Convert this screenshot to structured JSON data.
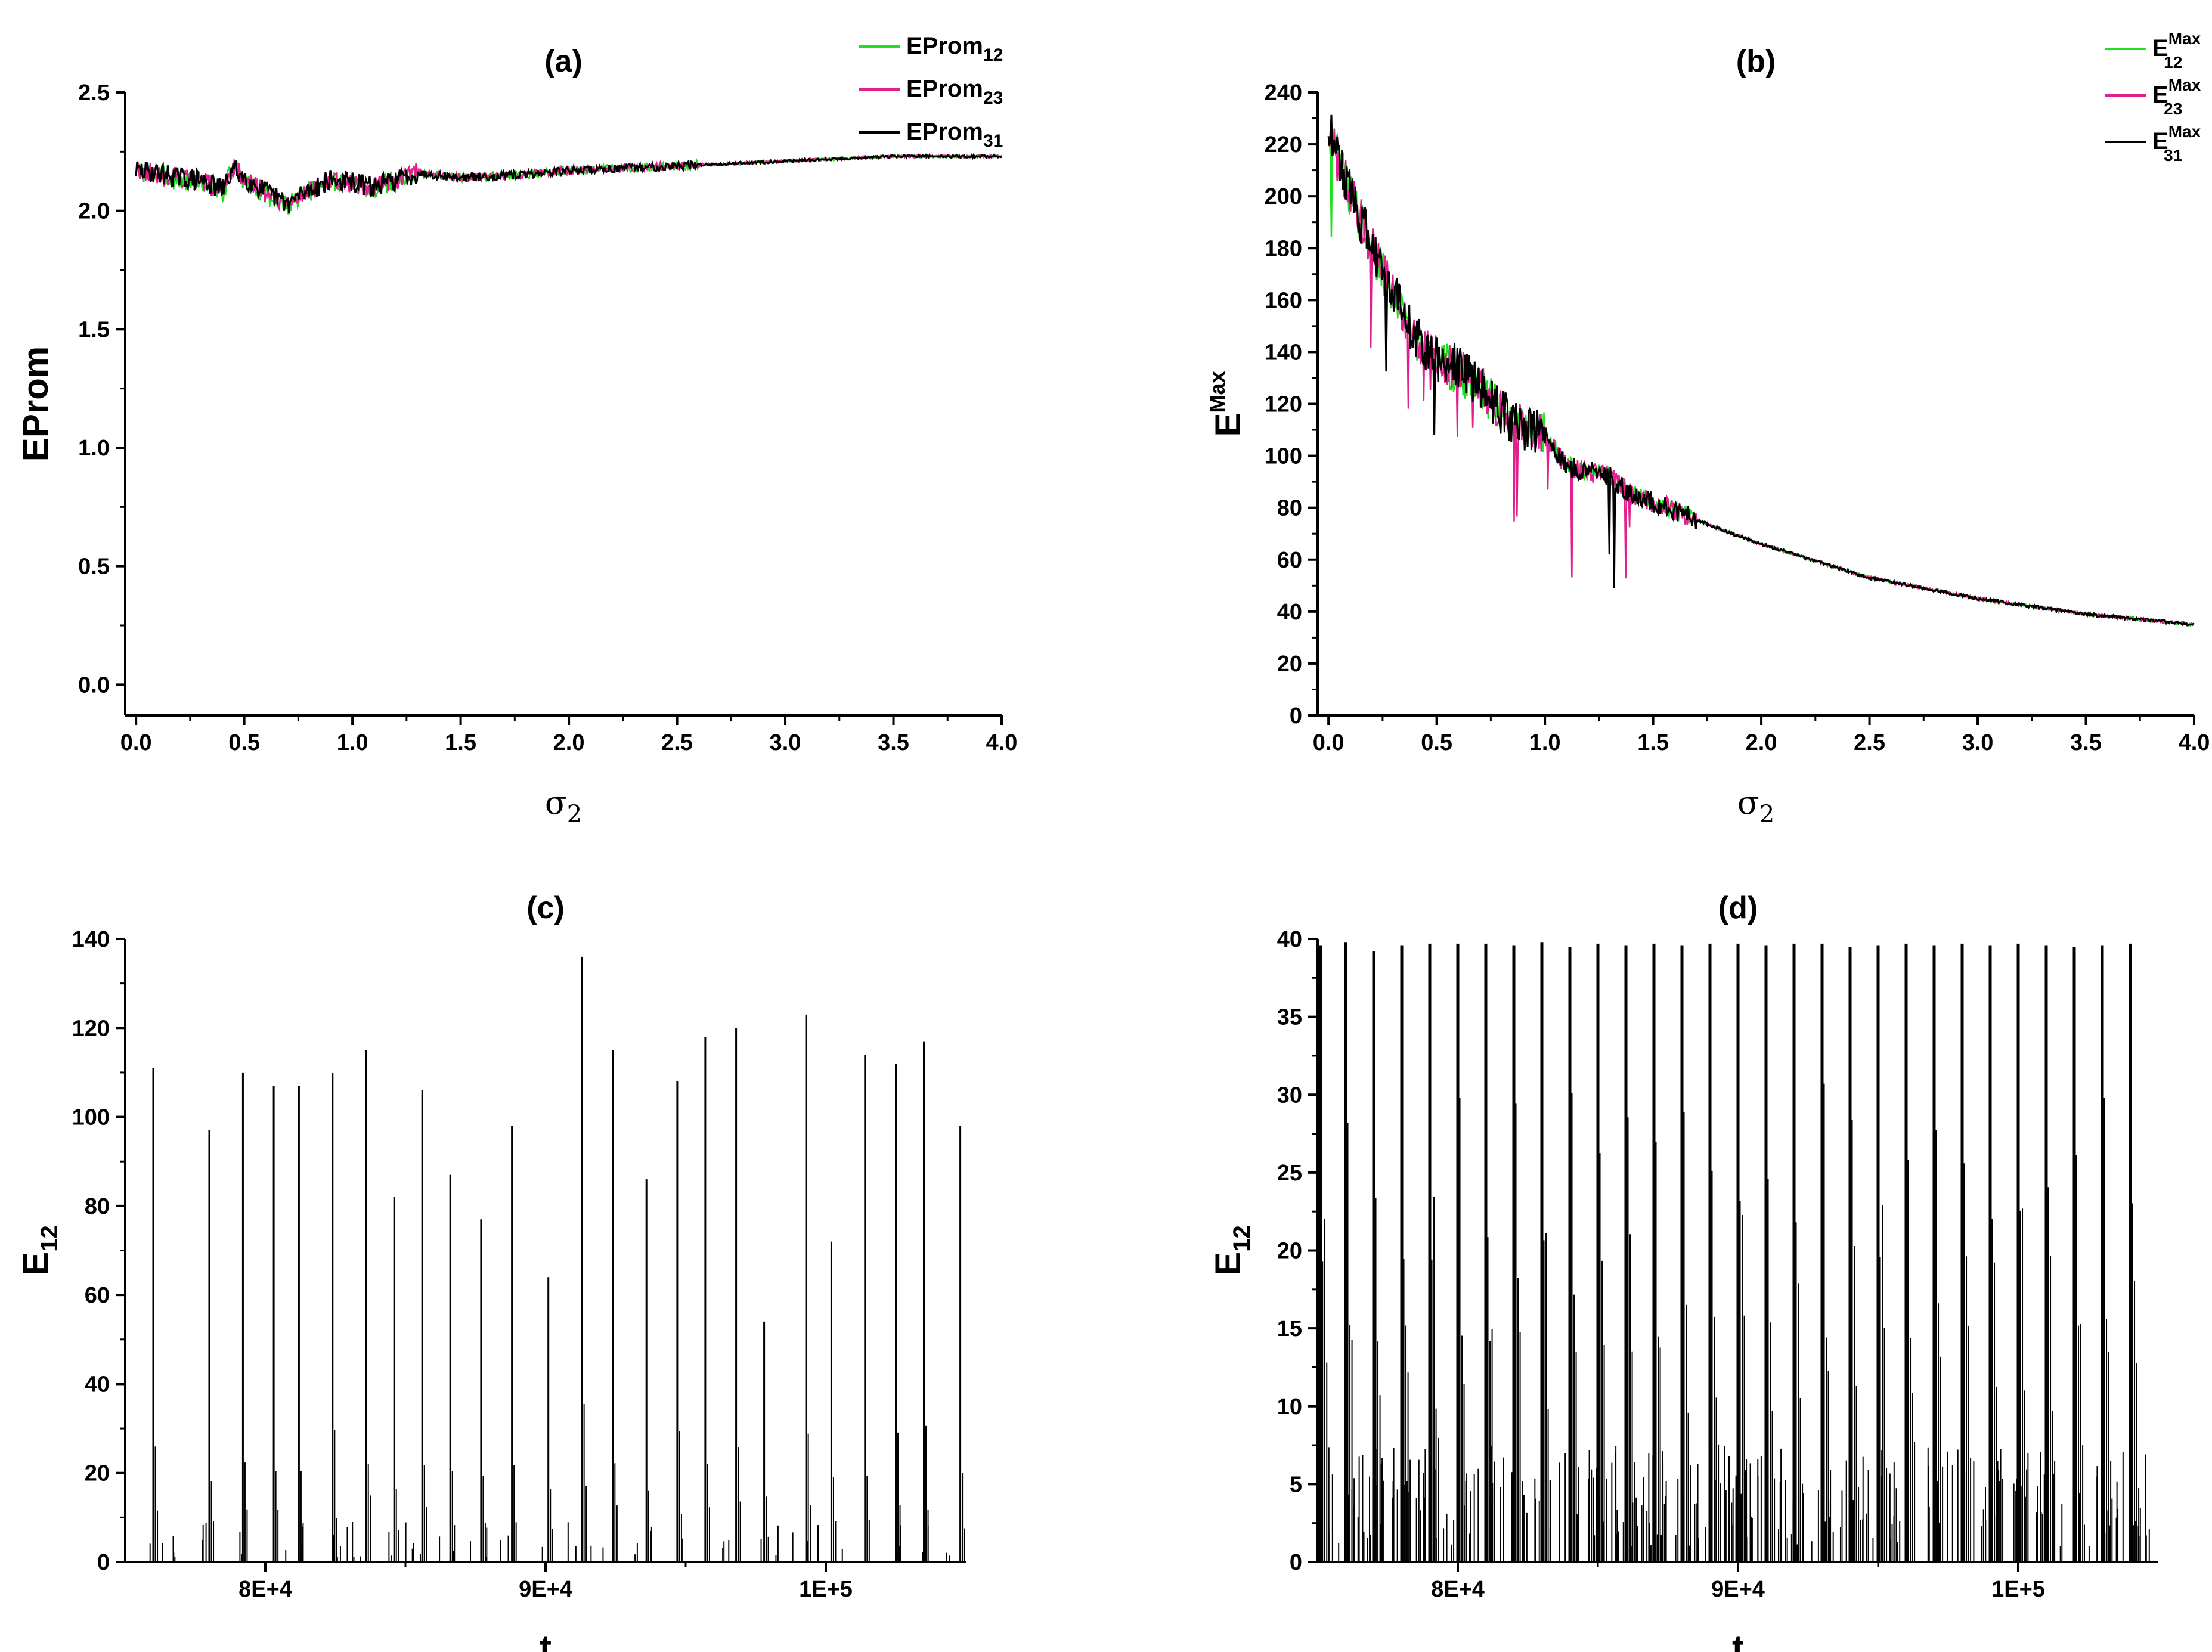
{
  "chart_data": [
    {
      "id": "a",
      "type": "line",
      "title": "(a)",
      "xlabel": "σ",
      "xlabel_sub": "2",
      "ylabel": "EProm",
      "ylabel_sub": "",
      "ylabel_sup": "",
      "xlim": [
        -0.05,
        4.0
      ],
      "ylim": [
        -0.13,
        2.5
      ],
      "xticks": [
        0.0,
        0.5,
        1.0,
        1.5,
        2.0,
        2.5,
        3.0,
        3.5,
        4.0
      ],
      "xtick_labels": [
        "0.0",
        "0.5",
        "1.0",
        "1.5",
        "2.0",
        "2.5",
        "3.0",
        "3.5",
        "4.0"
      ],
      "yticks": [
        0.0,
        0.5,
        1.0,
        1.5,
        2.0,
        2.5
      ],
      "ytick_labels": [
        "0.0",
        "0.5",
        "1.0",
        "1.5",
        "2.0",
        "2.5"
      ],
      "legend": "top-right",
      "grid": false,
      "series": [
        {
          "name": "EProm",
          "sub": "12",
          "sup": "",
          "color": "#22dd22",
          "x": [
            0.0,
            0.1,
            0.2,
            0.3,
            0.4,
            0.45,
            0.5,
            0.6,
            0.7,
            0.8,
            0.9,
            1.0,
            1.1,
            1.2,
            1.3,
            1.5,
            1.75,
            2.0,
            2.5,
            3.0,
            3.5,
            4.0
          ],
          "y": [
            2.17,
            2.15,
            2.13,
            2.12,
            2.08,
            2.19,
            2.13,
            2.07,
            2.02,
            2.08,
            2.13,
            2.12,
            2.09,
            2.13,
            2.16,
            2.14,
            2.15,
            2.17,
            2.19,
            2.21,
            2.23,
            2.23
          ]
        },
        {
          "name": "EProm",
          "sub": "23",
          "sup": "",
          "color": "#e0208c",
          "x": [
            0.0,
            0.1,
            0.2,
            0.3,
            0.4,
            0.45,
            0.5,
            0.6,
            0.7,
            0.8,
            0.9,
            1.0,
            1.1,
            1.2,
            1.3,
            1.5,
            1.75,
            2.0,
            2.5,
            3.0,
            3.5,
            4.0
          ],
          "y": [
            2.18,
            2.15,
            2.14,
            2.12,
            2.09,
            2.19,
            2.14,
            2.08,
            2.03,
            2.09,
            2.13,
            2.12,
            2.1,
            2.13,
            2.16,
            2.14,
            2.15,
            2.17,
            2.19,
            2.21,
            2.23,
            2.23
          ]
        },
        {
          "name": "EProm",
          "sub": "31",
          "sup": "",
          "color": "#000000",
          "x": [
            0.0,
            0.1,
            0.2,
            0.3,
            0.4,
            0.45,
            0.5,
            0.6,
            0.7,
            0.8,
            0.9,
            1.0,
            1.1,
            1.2,
            1.3,
            1.5,
            1.75,
            2.0,
            2.5,
            3.0,
            3.5,
            4.0
          ],
          "y": [
            2.17,
            2.16,
            2.14,
            2.13,
            2.09,
            2.18,
            2.14,
            2.08,
            2.03,
            2.09,
            2.13,
            2.12,
            2.1,
            2.13,
            2.16,
            2.14,
            2.15,
            2.17,
            2.19,
            2.21,
            2.23,
            2.23
          ]
        }
      ]
    },
    {
      "id": "b",
      "type": "line",
      "title": "(b)",
      "xlabel": "σ",
      "xlabel_sub": "2",
      "ylabel": "E",
      "ylabel_sub": "",
      "ylabel_sup": "Max",
      "xlim": [
        -0.05,
        4.0
      ],
      "ylim": [
        0,
        240
      ],
      "xticks": [
        0.0,
        0.5,
        1.0,
        1.5,
        2.0,
        2.5,
        3.0,
        3.5,
        4.0
      ],
      "xtick_labels": [
        "0.0",
        "0.5",
        "1.0",
        "1.5",
        "2.0",
        "2.5",
        "3.0",
        "3.5",
        "4.0"
      ],
      "yticks": [
        0,
        20,
        40,
        60,
        80,
        100,
        120,
        140,
        160,
        180,
        200,
        220,
        240
      ],
      "ytick_labels": [
        "0",
        "20",
        "40",
        "60",
        "80",
        "100",
        "120",
        "140",
        "160",
        "180",
        "200",
        "220",
        "240"
      ],
      "legend": "top-right",
      "grid": false,
      "series": [
        {
          "name": "E",
          "sub": "12",
          "sup": "Max",
          "color": "#22dd22",
          "x": [
            0.0,
            0.05,
            0.1,
            0.2,
            0.3,
            0.4,
            0.5,
            0.6,
            0.7,
            0.8,
            0.9,
            1.0,
            1.1,
            1.2,
            1.3,
            1.4,
            1.5,
            1.6,
            1.8,
            2.0,
            2.5,
            3.0,
            3.5,
            4.0
          ],
          "y": [
            226,
            212,
            200,
            180,
            162,
            145,
            136,
            133,
            126,
            116,
            110,
            108,
            96,
            94,
            92,
            85,
            82,
            79,
            72,
            66,
            53,
            45,
            39,
            35
          ]
        },
        {
          "name": "E",
          "sub": "23",
          "sup": "Max",
          "color": "#e0208c",
          "x": [
            0.0,
            0.05,
            0.1,
            0.2,
            0.3,
            0.4,
            0.5,
            0.6,
            0.7,
            0.8,
            0.9,
            1.0,
            1.1,
            1.2,
            1.3,
            1.4,
            1.5,
            1.6,
            1.8,
            2.0,
            2.5,
            3.0,
            3.5,
            4.0
          ],
          "y": [
            225,
            212,
            201,
            181,
            163,
            146,
            137,
            134,
            127,
            117,
            110,
            108,
            96,
            94,
            92,
            85,
            82,
            79,
            72,
            66,
            53,
            45,
            39,
            35
          ]
        },
        {
          "name": "E",
          "sub": "31",
          "sup": "Max",
          "color": "#000000",
          "x": [
            0.0,
            0.05,
            0.1,
            0.2,
            0.3,
            0.4,
            0.5,
            0.6,
            0.7,
            0.8,
            0.9,
            1.0,
            1.1,
            1.2,
            1.3,
            1.4,
            1.5,
            1.6,
            1.8,
            2.0,
            2.5,
            3.0,
            3.5,
            4.0
          ],
          "y": [
            227,
            213,
            201,
            181,
            163,
            146,
            137,
            134,
            127,
            117,
            110,
            108,
            96,
            94,
            92,
            85,
            82,
            79,
            72,
            66,
            53,
            45,
            39,
            35
          ]
        }
      ]
    },
    {
      "id": "c",
      "type": "line",
      "title": "(c)",
      "xlabel": "t",
      "xlabel_sub": "",
      "ylabel": "E",
      "ylabel_sub": "12",
      "ylabel_sup": "",
      "xlim": [
        75000,
        105000
      ],
      "ylim": [
        0,
        140
      ],
      "xticks": [
        80000,
        90000,
        100000
      ],
      "xtick_labels": [
        "8E+4",
        "9E+4",
        "1E+5"
      ],
      "yticks": [
        0,
        20,
        40,
        60,
        80,
        100,
        120,
        140
      ],
      "ytick_labels": [
        "0",
        "20",
        "40",
        "60",
        "80",
        "100",
        "120",
        "140"
      ],
      "legend": "none",
      "grid": false,
      "series": [
        {
          "name": "",
          "color": "#000000",
          "style": "spikes",
          "x": [
            76000,
            78000,
            79200,
            80300,
            81200,
            82400,
            83600,
            84600,
            85600,
            86600,
            87700,
            88800,
            90100,
            91300,
            92400,
            93600,
            94700,
            95700,
            96800,
            97800,
            99300,
            100200,
            101400,
            102500,
            103500,
            104800
          ],
          "y": [
            111,
            97,
            110,
            107,
            107,
            110,
            115,
            82,
            106,
            87,
            77,
            98,
            64,
            136,
            115,
            86,
            108,
            118,
            120,
            54,
            123,
            72,
            114,
            112,
            117,
            98
          ]
        }
      ]
    },
    {
      "id": "d",
      "type": "line",
      "title": "(d)",
      "xlabel": "t",
      "xlabel_sub": "",
      "ylabel": "E",
      "ylabel_sub": "12",
      "ylabel_sup": "",
      "xlim": [
        75000,
        105000
      ],
      "ylim": [
        0,
        40
      ],
      "xticks": [
        80000,
        90000,
        100000
      ],
      "xtick_labels": [
        "8E+4",
        "9E+4",
        "1E+5"
      ],
      "yticks": [
        0,
        5,
        10,
        15,
        20,
        25,
        30,
        35,
        40
      ],
      "ytick_labels": [
        "0",
        "5",
        "10",
        "15",
        "20",
        "25",
        "30",
        "35",
        "40"
      ],
      "legend": "none",
      "grid": false,
      "series": [
        {
          "name": "",
          "color": "#000000",
          "style": "spikes",
          "x": [
            75100,
            76000,
            77000,
            78000,
            79000,
            80000,
            81000,
            82000,
            83000,
            84000,
            85000,
            86000,
            87000,
            88000,
            89000,
            90000,
            91000,
            92000,
            93000,
            94000,
            95000,
            96000,
            97000,
            98000,
            99000,
            100000,
            101000,
            102000,
            103000,
            104000
          ],
          "y": [
            39.6,
            39.8,
            39.2,
            39.6,
            39.7,
            39.7,
            39.7,
            39.6,
            39.8,
            39.5,
            39.7,
            39.6,
            39.7,
            39.6,
            39.7,
            39.7,
            39.6,
            39.7,
            39.7,
            39.5,
            39.6,
            39.7,
            39.6,
            39.7,
            39.6,
            39.7,
            39.6,
            39.5,
            39.6,
            39.7
          ]
        }
      ]
    }
  ]
}
